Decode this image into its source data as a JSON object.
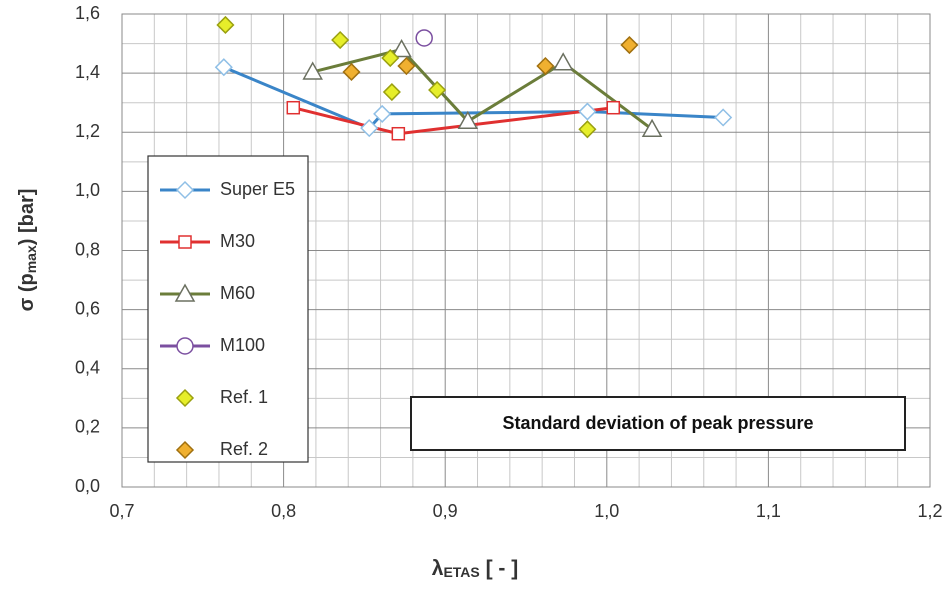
{
  "chart_data": {
    "type": "scatter",
    "x_label": {
      "main": "λ",
      "sub": "ETAS",
      "tail": " [ - ]"
    },
    "y_label": {
      "main": "σ (p",
      "sub": "max",
      "tail": ") [bar]"
    },
    "annotation": "Standard deviation of peak pressure",
    "xlim": [
      0.7,
      1.2
    ],
    "ylim": [
      0,
      1.6
    ],
    "xticks": [
      {
        "value": 0.7,
        "label": "0,7"
      },
      {
        "value": 0.8,
        "label": "0,8"
      },
      {
        "value": 0.9,
        "label": "0,9"
      },
      {
        "value": 1.0,
        "label": "1,0"
      },
      {
        "value": 1.1,
        "label": "1,1"
      },
      {
        "value": 1.2,
        "label": "1,2"
      }
    ],
    "yticks": [
      {
        "value": 0,
        "label": "0,0"
      },
      {
        "value": 0.2,
        "label": "0,2"
      },
      {
        "value": 0.4,
        "label": "0,4"
      },
      {
        "value": 0.6,
        "label": "0,6"
      },
      {
        "value": 0.8,
        "label": "0,8"
      },
      {
        "value": 1.0,
        "label": "1,0"
      },
      {
        "value": 1.2,
        "label": "1,2"
      },
      {
        "value": 1.4,
        "label": "1,4"
      },
      {
        "value": 1.6,
        "label": "1,6"
      }
    ],
    "xgrid": [
      0.72,
      0.74,
      0.76,
      0.78,
      0.82,
      0.84,
      0.86,
      0.88,
      0.92,
      0.94,
      0.96,
      0.98,
      1.02,
      1.04,
      1.06,
      1.08,
      1.12,
      1.14,
      1.16,
      1.18
    ],
    "ygrid": [
      0.1,
      0.3,
      0.5,
      0.7,
      0.9,
      1.1,
      1.3,
      1.5
    ],
    "grid": true,
    "legend": "left",
    "series": [
      {
        "name": "Super E5",
        "color": "#3a85c8",
        "marker": "diamond",
        "marker_fill": "#ffffff",
        "marker_stroke": "#8fbfe6",
        "line": true,
        "x": [
          0.763,
          0.853,
          0.861,
          0.988,
          1.072
        ],
        "values": [
          1.42,
          1.214,
          1.262,
          1.27,
          1.25
        ]
      },
      {
        "name": "M30",
        "color": "#e03030",
        "marker": "square",
        "marker_fill": "#ffffff",
        "marker_stroke": "#e03030",
        "line": true,
        "x": [
          0.806,
          0.871,
          1.004
        ],
        "values": [
          1.283,
          1.195,
          1.283
        ]
      },
      {
        "name": "M60",
        "color": "#6b7d3a",
        "marker": "triangle",
        "marker_fill": "#ffffff",
        "marker_stroke": "#6b7060",
        "line": true,
        "x": [
          0.818,
          0.873,
          0.914,
          0.973,
          1.028
        ],
        "values": [
          1.404,
          1.48,
          1.237,
          1.435,
          1.21
        ]
      },
      {
        "name": "M100",
        "color": "#7b4fa0",
        "marker": "circle",
        "marker_fill": "#ffffff",
        "marker_stroke": "#7b4fa0",
        "line": true,
        "x": [
          0.887
        ],
        "values": [
          1.519
        ]
      },
      {
        "name": "Ref. 1",
        "color": "#e6ee2a",
        "marker": "diamond",
        "marker_fill": "#e6ee2a",
        "marker_stroke": "#9aa010",
        "line": false,
        "x": [
          0.764,
          0.835,
          0.866,
          0.867,
          0.895,
          0.988
        ],
        "values": [
          1.563,
          1.512,
          1.451,
          1.336,
          1.343,
          1.21
        ]
      },
      {
        "name": "Ref. 2",
        "color": "#f0b030",
        "marker": "diamond",
        "marker_fill": "#f0b030",
        "marker_stroke": "#a07010",
        "line": false,
        "x": [
          0.842,
          0.876,
          0.962,
          1.014
        ],
        "values": [
          1.404,
          1.424,
          1.424,
          1.495
        ]
      }
    ]
  }
}
